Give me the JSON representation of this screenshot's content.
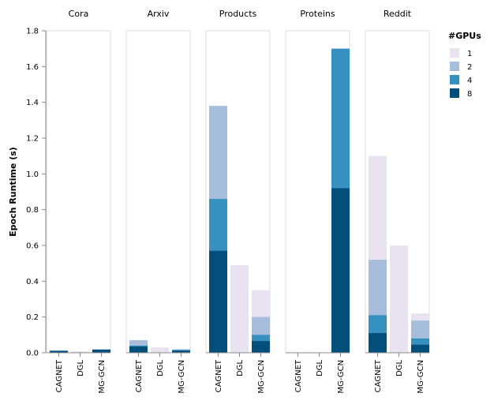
{
  "chart_data": {
    "type": "bar",
    "stacked": "overlay",
    "ylabel": "Epoch Runtime (s)",
    "ylim": [
      0,
      1.8
    ],
    "yticks": [
      0.0,
      0.2,
      0.4,
      0.6,
      0.8,
      1.0,
      1.2,
      1.4,
      1.6,
      1.8
    ],
    "ytick_labels": [
      "0.0",
      "0.2",
      "0.4",
      "0.6",
      "0.8",
      "1.0",
      "1.2",
      "1.4",
      "1.6",
      "1.8"
    ],
    "facets": [
      "Cora",
      "Arxiv",
      "Products",
      "Proteins",
      "Reddit"
    ],
    "categories": [
      "CAGNET",
      "DGL",
      "MG-GCN"
    ],
    "legend": {
      "title": "#GPUs",
      "position": "right",
      "entries": [
        {
          "label": "1",
          "color": "#e9e3f1"
        },
        {
          "label": "2",
          "color": "#a6bddb"
        },
        {
          "label": "4",
          "color": "#3690c0"
        },
        {
          "label": "8",
          "color": "#034e7b"
        }
      ]
    },
    "series": [
      {
        "name": "1",
        "values": {
          "Cora": [
            0.012,
            0.008,
            0.018
          ],
          "Arxiv": [
            0.07,
            0.03,
            0.02
          ],
          "Products": [
            1.38,
            0.49,
            0.35
          ],
          "Proteins": [
            null,
            null,
            1.7
          ],
          "Reddit": [
            1.1,
            0.6,
            0.22
          ]
        }
      },
      {
        "name": "2",
        "values": {
          "Cora": [
            0.012,
            null,
            0.018
          ],
          "Arxiv": [
            0.07,
            null,
            0.02
          ],
          "Products": [
            1.38,
            null,
            0.2
          ],
          "Proteins": [
            null,
            null,
            1.7
          ],
          "Reddit": [
            0.52,
            null,
            0.18
          ]
        }
      },
      {
        "name": "4",
        "values": {
          "Cora": [
            0.012,
            null,
            0.018
          ],
          "Arxiv": [
            0.04,
            null,
            0.015
          ],
          "Products": [
            0.86,
            null,
            0.1
          ],
          "Proteins": [
            null,
            null,
            1.7
          ],
          "Reddit": [
            0.21,
            null,
            0.08
          ]
        }
      },
      {
        "name": "8",
        "values": {
          "Cora": [
            0.01,
            null,
            0.018
          ],
          "Arxiv": [
            0.035,
            null,
            0.012
          ],
          "Products": [
            0.57,
            null,
            0.065
          ],
          "Proteins": [
            null,
            null,
            0.92
          ],
          "Reddit": [
            0.11,
            null,
            0.045
          ]
        }
      }
    ]
  }
}
